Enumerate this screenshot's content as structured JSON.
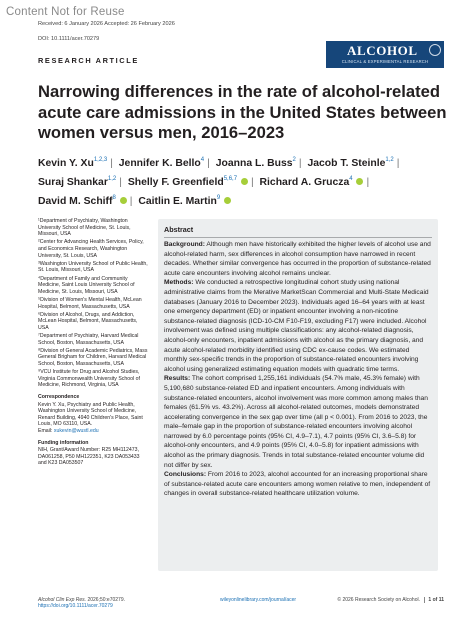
{
  "watermark": "Content Not for Reuse",
  "header": {
    "dates": "Received: 6 January 2026     Accepted: 26 February 2026",
    "doi": "DOI: 10.1111/acer.70279"
  },
  "logo": {
    "title": "ALCOHOL",
    "subtitle": "CLINICAL & EXPERIMENTAL RESEARCH"
  },
  "article_type": "RESEARCH ARTICLE",
  "title": "Narrowing differences in the rate of alcohol-related acute care admissions in the United States between women versus men, 2016–2023",
  "authors": [
    {
      "name": "Kevin Y. Xu",
      "sup": "1,2,3",
      "orcid": false
    },
    {
      "name": "Jennifer K. Bello",
      "sup": "4",
      "orcid": false
    },
    {
      "name": "Joanna L. Buss",
      "sup": "2",
      "orcid": false
    },
    {
      "name": "Jacob T. Steinle",
      "sup": "1,2",
      "orcid": false
    },
    {
      "name": "Suraj Shankar",
      "sup": "1,2",
      "orcid": false
    },
    {
      "name": "Shelly F. Greenfield",
      "sup": "5,6,7",
      "orcid": true
    },
    {
      "name": "Richard A. Grucza",
      "sup": "4",
      "orcid": true
    },
    {
      "name": "David M. Schiff",
      "sup": "8",
      "orcid": true
    },
    {
      "name": "Caitlin E. Martin",
      "sup": "9",
      "orcid": true
    }
  ],
  "affiliations": [
    "¹Department of Psychiatry, Washington University School of Medicine, St. Louis, Missouri, USA",
    "²Center for Advancing Health Services, Policy, and Economics Research, Washington University, St. Louis, USA",
    "³Washington University School of Public Health, St. Louis, Missouri, USA",
    "⁴Department of Family and Community Medicine, Saint Louis University School of Medicine, St. Louis, Missouri, USA",
    "⁵Division of Women's Mental Health, McLean Hospital, Belmont, Massachusetts, USA",
    "⁶Division of Alcohol, Drugs, and Addiction, McLean Hospital, Belmont, Massachusetts, USA",
    "⁷Department of Psychiatry, Harvard Medical School, Boston, Massachusetts, USA",
    "⁸Division of General Academic Pediatrics, Mass General Brigham for Children, Harvard Medical School, Boston, Massachusetts, USA",
    "⁹VCU Institute for Drug and Alcohol Studies, Virginia Commonwealth University School of Medicine, Richmond, Virginia, USA"
  ],
  "correspondence": {
    "heading": "Correspondence",
    "lines": [
      "Kevin Y. Xu, Psychiatry and Public Health, Washington University School of Medicine, Renard Building, 4940 Children's Place, Saint Louis, MO 63110, USA.",
      "Email: "
    ],
    "email": "xukevin@wustl.edu"
  },
  "funding": {
    "heading": "Funding information",
    "text": "NIH, Grant/Award Number: R25 MH112473, DA061258, P50 MH122351, K23 DA053433 and K23 DA053507"
  },
  "abstract": {
    "heading": "Abstract",
    "background_label": "Background:",
    "background": " Although men have historically exhibited the higher levels of alcohol use and alcohol-related harm, sex differences in alcohol consumption have narrowed in recent decades. Whether similar convergence has occurred in the proportion of substance-related acute care encounters involving alcohol remains unclear.",
    "methods_label": "Methods:",
    "methods": " We conducted a retrospective longitudinal cohort study using national administrative claims from the Merative MarketScan Commercial and Multi-State Medicaid databases (January 2016 to December 2023). Individuals aged 16–64 years with at least one emergency department (ED) or inpatient encounter involving a non-nicotine substance-related diagnosis (ICD-10-CM F10-F19, excluding F17) were included. Alcohol involvement was defined using multiple classifications: any alcohol-related diagnosis, alcohol-only encounters, inpatient admissions with alcohol as the primary diagnosis, and acute alcohol-related morbidity identified using CDC ex-cause codes. We estimated monthly sex-specific trends in the proportion of substance-related encounters involving alcohol using generalized estimating equation models with quadratic time terms.",
    "results_label": "Results:",
    "results": " The cohort comprised 1,255,161 individuals (54.7% male, 45.3% female) with 5,190,680 substance-related ED and inpatient encounters. Among individuals with substance-related encounters, alcohol involvement was more common among males than females (61.5% vs. 43.2%). Across all alcohol-related outcomes, models demonstrated accelerating convergence in the sex gap over time (all p < 0.001). From 2016 to 2023, the male–female gap in the proportion of substance-related encounters involving alcohol narrowed by 6.0 percentage points (95% CI, 4.9–7.1), 4.7 points (95% CI, 3.6–5.8) for alcohol-only encounters, and 4.9 points (95% CI, 4.0–5.8) for inpatient admissions with alcohol as the primary diagnosis. Trends in total substance-related encounter volume did not differ by sex.",
    "conclusions_label": "Conclusions:",
    "conclusions": " From 2016 to 2023, alcohol accounted for an increasing proportional share of substance-related acute care encounters among women relative to men, independent of changes in overall substance-related healthcare utilization volume."
  },
  "footer": {
    "journal": "Alcohol Clin Exp Res.",
    "citation": " 2026;50:e70279.",
    "doi_link": "https://doi.org/10.1111/acer.70279",
    "center_link": "wileyonlinelibrary.com/journal/acer",
    "copyright": "© 2026 Research Society on Alcohol.",
    "page": "1 of 11"
  }
}
